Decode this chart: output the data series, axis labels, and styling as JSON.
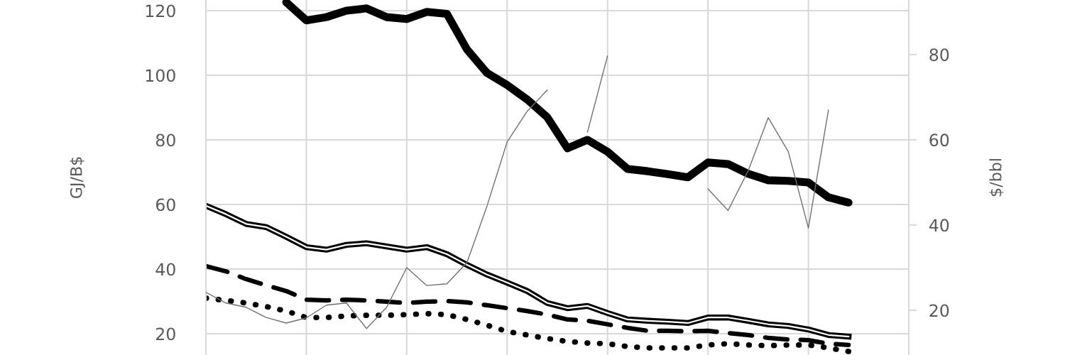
{
  "chart_data": {
    "type": "line",
    "ylabel": "GJ/B$",
    "y2label": "$/bbl",
    "categories": [
      null,
      null,
      null,
      null,
      null,
      null,
      null,
      null,
      null,
      null,
      null,
      null,
      null,
      null,
      null,
      null,
      null,
      null,
      null,
      null,
      null,
      null,
      null,
      null,
      null,
      null,
      null,
      null,
      null,
      null,
      null,
      null,
      null
    ],
    "ylim": [
      13.4,
      123.3
    ],
    "yticks": [
      20,
      40,
      60,
      80,
      100,
      120
    ],
    "y2lim": [
      9.5,
      92.8
    ],
    "y2ticks": [
      20,
      40,
      60,
      80
    ],
    "grid": true,
    "series": [
      {
        "color": "#000000",
        "line_style": "solid",
        "values": [
          null,
          null,
          null,
          null,
          122.6,
          117,
          118,
          120,
          120.7,
          118,
          117.4,
          119.6,
          119,
          108,
          100.7,
          97,
          92.5,
          87,
          77.4,
          80,
          76.3,
          71,
          70.3,
          69.4,
          68.4,
          73,
          72.5,
          69.5,
          67.5,
          67.3,
          66.8,
          62.2,
          60.6
        ]
      },
      {
        "color": "#000000",
        "line_style": "solid",
        "values": [
          59.6,
          57,
          54,
          53,
          50,
          46.8,
          46,
          47.5,
          48,
          47,
          46,
          46.8,
          44.6,
          41.3,
          38.3,
          35.8,
          33.2,
          29.5,
          27.9,
          28.6,
          26.4,
          24.4,
          24,
          23.7,
          23.3,
          25,
          25,
          24,
          22.9,
          22.4,
          21.3,
          19.6,
          19.1
        ]
      },
      {
        "color": "#000000",
        "line_style": "dashed",
        "values": [
          40.9,
          39.3,
          36.9,
          35,
          33.2,
          30.5,
          30.3,
          30.5,
          30.3,
          29.9,
          29.5,
          29.9,
          30.1,
          29.7,
          28.8,
          27.9,
          27,
          25.9,
          24.4,
          24,
          22.9,
          21.8,
          20.9,
          20.9,
          20.7,
          20.9,
          20.2,
          19.6,
          18.7,
          18.2,
          18,
          16.9,
          16.5
        ]
      },
      {
        "color": "#000000",
        "line_style": "dotted",
        "values": [
          31,
          30.3,
          29.5,
          28.4,
          27,
          25,
          25,
          25.5,
          25.7,
          25.7,
          25.9,
          26.2,
          25.9,
          24.4,
          22.6,
          20.7,
          19.6,
          18.5,
          17.6,
          17.1,
          16.9,
          16,
          15.6,
          15.6,
          15.6,
          16.5,
          16.9,
          16.5,
          16.3,
          16.5,
          16.5,
          15.6,
          14.5
        ]
      },
      {
        "color": "#707070",
        "line_style": "solid",
        "axis": "y2",
        "values": [
          24.2,
          21.7,
          20.7,
          18.3,
          17,
          18.2,
          21.2,
          21.7,
          15.7,
          20.7,
          30,
          25.8,
          26.2,
          31.2,
          44.5,
          59.5,
          66.7,
          71.7,
          null,
          61.8,
          79.7,
          null,
          null,
          null,
          null,
          48.5,
          43.4,
          52.7,
          65.2,
          57.2,
          39.3,
          67,
          null
        ]
      }
    ]
  }
}
